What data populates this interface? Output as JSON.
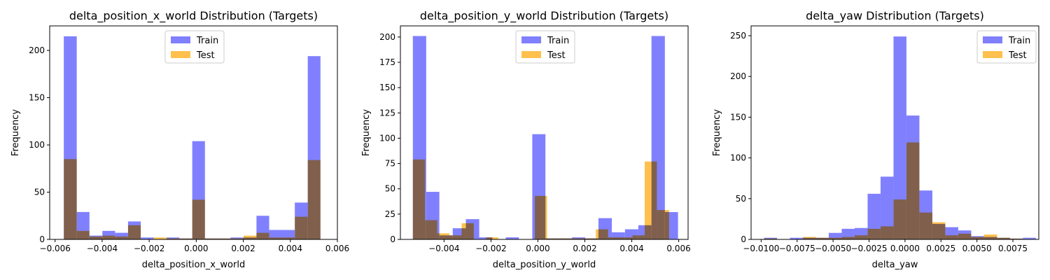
{
  "chart_data": [
    {
      "type": "bar",
      "title": "delta_position_x_world Distribution (Targets)",
      "xlabel": "delta_position_x_world",
      "ylabel": "Frequency",
      "xlim": [
        -0.00623,
        0.006
      ],
      "ylim": [
        0,
        226
      ],
      "xticks": [
        -0.006,
        -0.004,
        -0.002,
        0.0,
        0.002,
        0.004,
        0.006
      ],
      "xtick_labels": [
        "−0.006",
        "−0.004",
        "−0.002",
        "0.000",
        "0.002",
        "0.004",
        "0.006"
      ],
      "yticks": [
        0,
        50,
        100,
        150,
        200
      ],
      "ytick_labels": [
        "0",
        "50",
        "100",
        "150",
        "200"
      ],
      "legend_position": "top-center",
      "series": [
        {
          "name": "Train",
          "color": "#8080ff",
          "bins": [
            [
              -0.00563,
              -0.00508,
              215
            ],
            [
              -0.00508,
              -0.00454,
              29
            ],
            [
              -0.00454,
              -0.00399,
              4
            ],
            [
              -0.00399,
              -0.00345,
              9
            ],
            [
              -0.00345,
              -0.0029,
              7
            ],
            [
              -0.0029,
              -0.00236,
              19
            ],
            [
              -0.00236,
              -0.00181,
              2
            ],
            [
              -0.00181,
              -0.00126,
              0
            ],
            [
              -0.00126,
              -0.00072,
              2
            ],
            [
              -0.00072,
              -0.00017,
              1
            ],
            [
              -0.00017,
              0.00037,
              104
            ],
            [
              0.00037,
              0.00092,
              1
            ],
            [
              0.00092,
              0.00146,
              1
            ],
            [
              0.00146,
              0.00201,
              2
            ],
            [
              0.00201,
              0.00256,
              2
            ],
            [
              0.00256,
              0.0031,
              25
            ],
            [
              0.0031,
              0.00365,
              10
            ],
            [
              0.00365,
              0.00419,
              10
            ],
            [
              0.00419,
              0.00474,
              39
            ],
            [
              0.00474,
              0.00528,
              194
            ]
          ]
        },
        {
          "name": "Test",
          "color": "#ffc04d",
          "bins": [
            [
              -0.00563,
              -0.00508,
              85
            ],
            [
              -0.00508,
              -0.00454,
              9
            ],
            [
              -0.00454,
              -0.00399,
              3
            ],
            [
              -0.00399,
              -0.00345,
              4
            ],
            [
              -0.00345,
              -0.0029,
              3
            ],
            [
              -0.0029,
              -0.00236,
              15
            ],
            [
              -0.00236,
              -0.00181,
              0
            ],
            [
              -0.00181,
              -0.00126,
              2
            ],
            [
              -0.00126,
              -0.00072,
              1
            ],
            [
              -0.00072,
              -0.00017,
              1
            ],
            [
              -0.00017,
              0.00037,
              42
            ],
            [
              0.00037,
              0.00092,
              1
            ],
            [
              0.00092,
              0.00146,
              1
            ],
            [
              0.00146,
              0.00201,
              1
            ],
            [
              0.00201,
              0.00256,
              4
            ],
            [
              0.00256,
              0.0031,
              7
            ],
            [
              0.0031,
              0.00365,
              2
            ],
            [
              0.00365,
              0.00419,
              2
            ],
            [
              0.00419,
              0.00474,
              24
            ],
            [
              0.00474,
              0.00528,
              84
            ]
          ]
        }
      ]
    },
    {
      "type": "bar",
      "title": "delta_position_y_world Distribution (Targets)",
      "xlabel": "delta_position_y_world",
      "ylabel": "Frequency",
      "xlim": [
        -0.00586,
        0.0064
      ],
      "ylim": [
        0,
        211
      ],
      "xticks": [
        -0.004,
        -0.002,
        0.0,
        0.002,
        0.004,
        0.006
      ],
      "xtick_labels": [
        "−0.004",
        "−0.002",
        "0.000",
        "0.002",
        "0.004",
        "0.006"
      ],
      "yticks": [
        0,
        25,
        50,
        75,
        100,
        125,
        150,
        175,
        200
      ],
      "ytick_labels": [
        "0",
        "25",
        "50",
        "75",
        "100",
        "125",
        "150",
        "175",
        "200"
      ],
      "legend_position": "top-center",
      "series": [
        {
          "name": "Train",
          "color": "#8080ff",
          "bins": [
            [
              -0.00533,
              -0.00476,
              201
            ],
            [
              -0.00476,
              -0.0042,
              47
            ],
            [
              -0.0042,
              -0.00363,
              4
            ],
            [
              -0.00363,
              -0.00307,
              11
            ],
            [
              -0.00307,
              -0.0025,
              20
            ],
            [
              -0.0025,
              -0.00194,
              2
            ],
            [
              -0.00194,
              -0.00137,
              0
            ],
            [
              -0.00137,
              -0.00081,
              2
            ],
            [
              -0.00081,
              -0.00024,
              0
            ],
            [
              -0.00024,
              0.00032,
              104
            ],
            [
              0.00032,
              0.00089,
              1
            ],
            [
              0.00089,
              0.00145,
              1
            ],
            [
              0.00145,
              0.00202,
              2
            ],
            [
              0.00202,
              0.00258,
              1
            ],
            [
              0.00258,
              0.00315,
              21
            ],
            [
              0.00315,
              0.00371,
              7
            ],
            [
              0.00371,
              0.00428,
              10
            ],
            [
              0.00428,
              0.00484,
              14
            ],
            [
              0.00484,
              0.00541,
              201
            ],
            [
              0.00541,
              0.00597,
              27
            ]
          ]
        },
        {
          "name": "Test",
          "color": "#ffc04d",
          "bins": [
            [
              -0.00533,
              -0.00481,
              79
            ],
            [
              -0.00481,
              -0.00429,
              19
            ],
            [
              -0.00429,
              -0.00377,
              6
            ],
            [
              -0.00377,
              -0.00325,
              4
            ],
            [
              -0.00325,
              -0.00273,
              16
            ],
            [
              -0.00273,
              -0.00221,
              0
            ],
            [
              -0.00221,
              -0.00169,
              2
            ],
            [
              -0.00169,
              -0.00117,
              0
            ],
            [
              -0.00117,
              -0.00065,
              0
            ],
            [
              -0.00065,
              -0.00013,
              0
            ],
            [
              -0.00013,
              0.00039,
              43
            ],
            [
              0.00039,
              0.00091,
              1
            ],
            [
              0.00091,
              0.00143,
              1
            ],
            [
              0.00143,
              0.00195,
              1
            ],
            [
              0.00195,
              0.00247,
              1
            ],
            [
              0.00247,
              0.00299,
              10
            ],
            [
              0.00299,
              0.00351,
              2
            ],
            [
              0.00351,
              0.00403,
              2
            ],
            [
              0.00403,
              0.00455,
              4
            ],
            [
              0.00455,
              0.00507,
              77
            ],
            [
              0.00507,
              0.00559,
              29
            ]
          ]
        }
      ]
    },
    {
      "type": "bar",
      "title": "delta_yaw Distribution (Targets)",
      "xlabel": "delta_yaw",
      "ylabel": "Frequency",
      "xlim": [
        -0.0107,
        0.0093
      ],
      "ylim": [
        0,
        262
      ],
      "xticks": [
        -0.01,
        -0.0075,
        -0.005,
        -0.0025,
        0.0,
        0.0025,
        0.005,
        0.0075
      ],
      "xtick_labels": [
        "−0.0100",
        "−0.0075",
        "−0.0050",
        "−0.0025",
        "0.0000",
        "0.0025",
        "0.0050",
        "0.0075"
      ],
      "yticks": [
        0,
        50,
        100,
        150,
        200,
        250
      ],
      "ytick_labels": [
        "0",
        "50",
        "100",
        "150",
        "200",
        "250"
      ],
      "legend_position": "top-right",
      "series": [
        {
          "name": "Train",
          "color": "#8080ff",
          "bins": [
            [
              -0.0098,
              -0.0089,
              2
            ],
            [
              -0.0089,
              -0.008,
              0
            ],
            [
              -0.008,
              -0.0071,
              2
            ],
            [
              -0.0071,
              -0.0062,
              2
            ],
            [
              -0.0062,
              -0.0053,
              2
            ],
            [
              -0.0053,
              -0.0044,
              8
            ],
            [
              -0.0044,
              -0.0035,
              13
            ],
            [
              -0.0035,
              -0.0026,
              14
            ],
            [
              -0.0026,
              -0.0017,
              56
            ],
            [
              -0.0017,
              -0.0008,
              77
            ],
            [
              -0.0008,
              0.0001,
              249
            ],
            [
              0.0001,
              0.001,
              152
            ],
            [
              0.001,
              0.0019,
              60
            ],
            [
              0.0019,
              0.0028,
              19
            ],
            [
              0.0028,
              0.0037,
              15
            ],
            [
              0.0037,
              0.0046,
              11
            ],
            [
              0.0046,
              0.0055,
              4
            ],
            [
              0.0055,
              0.0064,
              3
            ],
            [
              0.0064,
              0.0073,
              2
            ],
            [
              0.0073,
              0.0082,
              1
            ],
            [
              0.0082,
              0.0091,
              2
            ]
          ]
        },
        {
          "name": "Test",
          "color": "#ffc04d",
          "bins": [
            [
              -0.0098,
              -0.0089,
              1
            ],
            [
              -0.0089,
              -0.008,
              0
            ],
            [
              -0.008,
              -0.0071,
              0
            ],
            [
              -0.0071,
              -0.0062,
              3
            ],
            [
              -0.0062,
              -0.0053,
              2
            ],
            [
              -0.0053,
              -0.0044,
              2
            ],
            [
              -0.0044,
              -0.0035,
              3
            ],
            [
              -0.0035,
              -0.0026,
              5
            ],
            [
              -0.0026,
              -0.0017,
              13
            ],
            [
              -0.0017,
              -0.0008,
              16
            ],
            [
              -0.0008,
              0.0001,
              49
            ],
            [
              0.0001,
              0.001,
              119
            ],
            [
              0.001,
              0.0019,
              33
            ],
            [
              0.0019,
              0.0028,
              21
            ],
            [
              0.0028,
              0.0037,
              5
            ],
            [
              0.0037,
              0.0046,
              7
            ],
            [
              0.0046,
              0.0055,
              3
            ],
            [
              0.0055,
              0.0064,
              6
            ],
            [
              0.0064,
              0.0073,
              2
            ],
            [
              0.0073,
              0.0082,
              1
            ]
          ]
        }
      ]
    }
  ]
}
